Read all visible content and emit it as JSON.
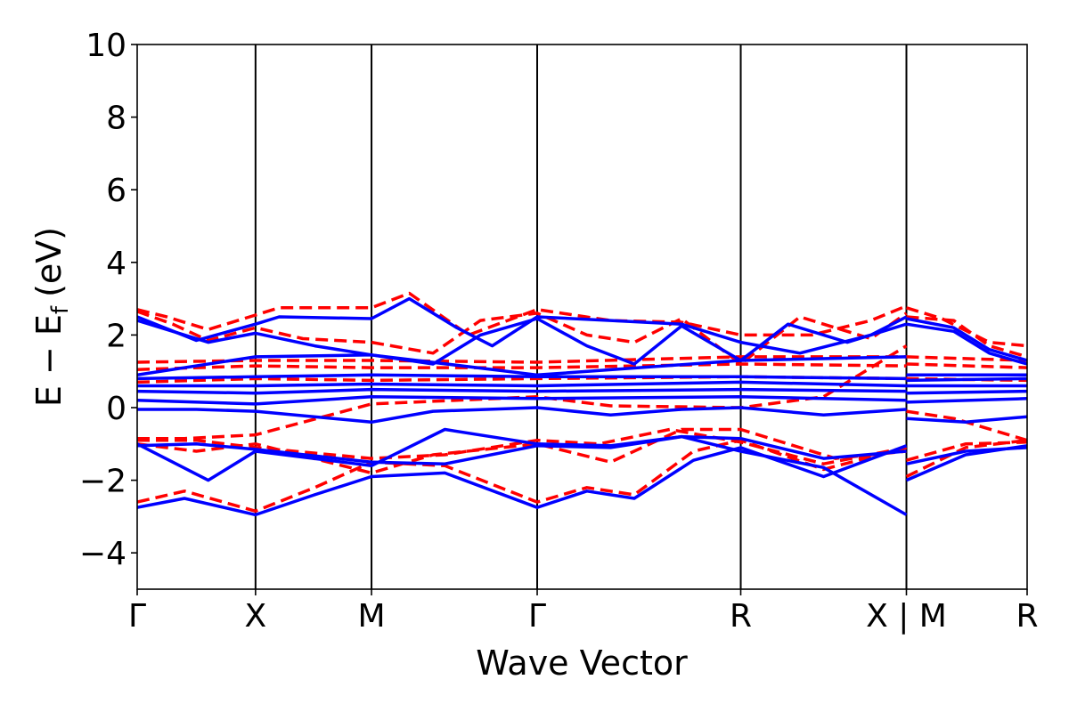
{
  "chart_data": {
    "type": "line",
    "xlabel": "Wave Vector",
    "ylabel_main": "E − E",
    "ylabel_sub": "f",
    "ylabel_unit": "(eV)",
    "ylim": [
      -5,
      10
    ],
    "yticks": [
      {
        "value": -4,
        "label": "−4"
      },
      {
        "value": -2,
        "label": "−2"
      },
      {
        "value": 0,
        "label": "0"
      },
      {
        "value": 2,
        "label": "2"
      },
      {
        "value": 4,
        "label": "4"
      },
      {
        "value": 6,
        "label": "6"
      },
      {
        "value": 8,
        "label": "8"
      },
      {
        "value": 10,
        "label": "10"
      }
    ],
    "xlim": [
      0,
      7.52
    ],
    "kpoints": [
      {
        "x": 0,
        "label": "Γ"
      },
      {
        "x": 1.0,
        "label": "X"
      },
      {
        "x": 1.98,
        "label": "M"
      },
      {
        "x": 3.38,
        "label": "Γ"
      },
      {
        "x": 5.1,
        "label": "R"
      },
      {
        "x": 6.5,
        "label": "X | M"
      },
      {
        "x": 7.52,
        "label": "R"
      }
    ],
    "vlines": [
      1.0,
      1.98,
      3.38,
      5.1,
      6.5
    ],
    "series": [
      {
        "color": "#ff0000",
        "dashed": true,
        "bands": [
          [
            [
              0,
              2.7
            ],
            [
              0.25,
              2.5
            ],
            [
              0.6,
              2.15
            ],
            [
              1.0,
              2.55
            ],
            [
              1.2,
              2.75
            ],
            [
              1.98,
              2.75
            ],
            [
              2.3,
              3.15
            ],
            [
              2.8,
              2.0
            ],
            [
              3.38,
              2.7
            ],
            [
              4.0,
              2.4
            ],
            [
              4.6,
              2.35
            ],
            [
              5.1,
              2.0
            ],
            [
              5.7,
              2.0
            ],
            [
              6.2,
              2.4
            ],
            [
              6.5,
              2.8
            ]
          ],
          [
            [
              6.5,
              2.75
            ],
            [
              6.8,
              2.45
            ],
            [
              7.2,
              1.8
            ],
            [
              7.52,
              1.7
            ]
          ],
          [
            [
              0,
              2.65
            ],
            [
              0.3,
              2.3
            ],
            [
              0.6,
              1.85
            ],
            [
              1.0,
              2.2
            ],
            [
              1.4,
              1.9
            ],
            [
              1.98,
              1.8
            ],
            [
              2.5,
              1.5
            ],
            [
              2.9,
              2.4
            ],
            [
              3.38,
              2.6
            ],
            [
              3.8,
              2.0
            ],
            [
              4.2,
              1.8
            ],
            [
              4.6,
              2.45
            ],
            [
              5.1,
              1.2
            ],
            [
              5.6,
              2.5
            ],
            [
              6.2,
              1.9
            ],
            [
              6.5,
              2.6
            ]
          ],
          [
            [
              6.5,
              2.5
            ],
            [
              6.9,
              2.4
            ],
            [
              7.2,
              1.7
            ],
            [
              7.52,
              1.4
            ]
          ],
          [
            [
              0,
              1.25
            ],
            [
              1.0,
              1.3
            ],
            [
              1.98,
              1.3
            ],
            [
              3.38,
              1.25
            ],
            [
              5.1,
              1.4
            ],
            [
              6.5,
              1.4
            ]
          ],
          [
            [
              6.5,
              1.4
            ],
            [
              7.52,
              1.3
            ]
          ],
          [
            [
              0,
              1.05
            ],
            [
              1.0,
              1.15
            ],
            [
              1.98,
              1.1
            ],
            [
              3.38,
              1.1
            ],
            [
              5.1,
              1.2
            ],
            [
              6.5,
              1.15
            ]
          ],
          [
            [
              6.5,
              1.2
            ],
            [
              7.52,
              1.1
            ]
          ],
          [
            [
              0,
              0.7
            ],
            [
              1.0,
              0.8
            ],
            [
              1.98,
              0.75
            ],
            [
              3.38,
              0.8
            ],
            [
              5.1,
              0.85
            ],
            [
              6.5,
              0.8
            ]
          ],
          [
            [
              6.5,
              0.8
            ],
            [
              7.52,
              0.75
            ]
          ],
          [
            [
              0,
              -0.85
            ],
            [
              0.4,
              -0.85
            ],
            [
              1.0,
              -0.75
            ],
            [
              1.98,
              0.1
            ],
            [
              3.38,
              0.3
            ],
            [
              4.0,
              0.05
            ],
            [
              5.1,
              0.0
            ],
            [
              5.8,
              0.3
            ],
            [
              6.5,
              1.7
            ]
          ],
          [
            [
              6.5,
              -0.1
            ],
            [
              6.9,
              -0.3
            ],
            [
              7.52,
              -0.9
            ]
          ],
          [
            [
              0,
              -0.9
            ],
            [
              0.5,
              -0.9
            ],
            [
              1.0,
              -1.1
            ],
            [
              1.98,
              -1.4
            ],
            [
              2.6,
              -1.3
            ],
            [
              3.38,
              -0.9
            ],
            [
              3.9,
              -1.0
            ],
            [
              4.5,
              -0.6
            ],
            [
              5.1,
              -0.95
            ],
            [
              5.8,
              -1.55
            ],
            [
              6.5,
              -1.1
            ]
          ],
          [
            [
              6.5,
              -1.45
            ],
            [
              7.0,
              -1.0
            ],
            [
              7.52,
              -0.95
            ]
          ],
          [
            [
              0,
              -2.6
            ],
            [
              0.4,
              -2.3
            ],
            [
              1.0,
              -2.85
            ],
            [
              1.5,
              -2.2
            ],
            [
              1.98,
              -1.5
            ],
            [
              2.6,
              -1.6
            ],
            [
              3.38,
              -2.6
            ],
            [
              3.8,
              -2.2
            ],
            [
              4.2,
              -2.4
            ],
            [
              4.7,
              -1.2
            ],
            [
              5.1,
              -0.9
            ],
            [
              5.8,
              -1.7
            ],
            [
              6.5,
              -1.1
            ]
          ],
          [
            [
              6.5,
              -1.9
            ],
            [
              7.0,
              -1.1
            ],
            [
              7.52,
              -0.9
            ]
          ],
          [
            [
              0,
              -1.0
            ],
            [
              0.5,
              -1.2
            ],
            [
              1.0,
              -1.0
            ],
            [
              1.98,
              -1.8
            ],
            [
              2.5,
              -1.3
            ],
            [
              3.38,
              -1.0
            ],
            [
              4.0,
              -1.5
            ],
            [
              4.6,
              -0.6
            ],
            [
              5.1,
              -0.6
            ],
            [
              5.9,
              -1.4
            ],
            [
              6.5,
              -1.2
            ]
          ]
        ]
      },
      {
        "color": "#0000ff",
        "dashed": false,
        "bands": [
          [
            [
              0,
              2.5
            ],
            [
              0.5,
              1.85
            ],
            [
              1.0,
              2.3
            ],
            [
              1.2,
              2.5
            ],
            [
              1.98,
              2.45
            ],
            [
              2.3,
              3.0
            ],
            [
              2.7,
              2.2
            ],
            [
              3.0,
              1.7
            ],
            [
              3.38,
              2.5
            ],
            [
              4.0,
              2.4
            ],
            [
              4.6,
              2.3
            ],
            [
              5.1,
              1.8
            ],
            [
              5.6,
              1.5
            ],
            [
              6.2,
              2.0
            ],
            [
              6.5,
              2.5
            ]
          ],
          [
            [
              6.5,
              2.45
            ],
            [
              6.9,
              2.2
            ],
            [
              7.2,
              1.6
            ],
            [
              7.52,
              1.3
            ]
          ],
          [
            [
              0,
              2.4
            ],
            [
              0.3,
              2.1
            ],
            [
              0.6,
              1.8
            ],
            [
              1.0,
              2.05
            ],
            [
              1.5,
              1.7
            ],
            [
              1.98,
              1.45
            ],
            [
              2.5,
              1.2
            ],
            [
              2.9,
              2.0
            ],
            [
              3.38,
              2.45
            ],
            [
              3.8,
              1.7
            ],
            [
              4.2,
              1.2
            ],
            [
              4.6,
              2.25
            ],
            [
              5.1,
              1.3
            ],
            [
              5.5,
              2.3
            ],
            [
              6.0,
              1.8
            ],
            [
              6.5,
              2.3
            ]
          ],
          [
            [
              6.5,
              2.3
            ],
            [
              6.9,
              2.1
            ],
            [
              7.2,
              1.5
            ],
            [
              7.52,
              1.2
            ]
          ],
          [
            [
              0,
              0.9
            ],
            [
              1.0,
              1.4
            ],
            [
              1.98,
              1.45
            ],
            [
              3.38,
              0.9
            ],
            [
              5.1,
              1.3
            ],
            [
              6.5,
              1.4
            ]
          ],
          [
            [
              6.5,
              0.9
            ],
            [
              7.52,
              0.9
            ]
          ],
          [
            [
              0,
              0.8
            ],
            [
              1.0,
              0.85
            ],
            [
              1.98,
              0.9
            ],
            [
              3.38,
              0.85
            ],
            [
              5.1,
              0.85
            ],
            [
              6.5,
              0.8
            ]
          ],
          [
            [
              6.5,
              0.75
            ],
            [
              7.52,
              0.8
            ]
          ],
          [
            [
              0,
              0.6
            ],
            [
              1.0,
              0.6
            ],
            [
              1.98,
              0.65
            ],
            [
              3.38,
              0.6
            ],
            [
              5.1,
              0.7
            ],
            [
              6.5,
              0.6
            ]
          ],
          [
            [
              6.5,
              0.6
            ],
            [
              7.52,
              0.6
            ]
          ],
          [
            [
              0,
              0.45
            ],
            [
              1.0,
              0.4
            ],
            [
              1.98,
              0.5
            ],
            [
              3.38,
              0.45
            ],
            [
              5.1,
              0.5
            ],
            [
              6.5,
              0.45
            ]
          ],
          [
            [
              6.5,
              0.4
            ],
            [
              7.52,
              0.45
            ]
          ],
          [
            [
              0,
              0.2
            ],
            [
              1.0,
              0.1
            ],
            [
              1.98,
              0.3
            ],
            [
              3.38,
              0.25
            ],
            [
              5.1,
              0.3
            ],
            [
              6.5,
              0.2
            ]
          ],
          [
            [
              6.5,
              0.15
            ],
            [
              7.52,
              0.25
            ]
          ],
          [
            [
              0,
              -0.05
            ],
            [
              0.5,
              -0.05
            ],
            [
              1.0,
              -0.1
            ],
            [
              1.98,
              -0.4
            ],
            [
              2.5,
              -0.1
            ],
            [
              3.38,
              0.0
            ],
            [
              4.0,
              -0.2
            ],
            [
              4.6,
              -0.05
            ],
            [
              5.1,
              0.0
            ],
            [
              5.8,
              -0.2
            ],
            [
              6.5,
              -0.05
            ]
          ],
          [
            [
              6.5,
              -0.3
            ],
            [
              7.0,
              -0.4
            ],
            [
              7.52,
              -0.25
            ]
          ],
          [
            [
              0,
              -1.05
            ],
            [
              0.5,
              -1.0
            ],
            [
              1.0,
              -1.15
            ],
            [
              1.98,
              -1.5
            ],
            [
              2.6,
              -1.55
            ],
            [
              3.38,
              -1.05
            ],
            [
              4.0,
              -1.1
            ],
            [
              4.6,
              -0.8
            ],
            [
              5.1,
              -0.85
            ],
            [
              5.8,
              -1.4
            ],
            [
              6.5,
              -1.2
            ]
          ],
          [
            [
              6.5,
              -1.55
            ],
            [
              7.0,
              -1.2
            ],
            [
              7.52,
              -1.1
            ]
          ],
          [
            [
              0,
              -2.75
            ],
            [
              0.4,
              -2.5
            ],
            [
              1.0,
              -2.95
            ],
            [
              1.5,
              -2.4
            ],
            [
              1.98,
              -1.9
            ],
            [
              2.6,
              -1.8
            ],
            [
              3.38,
              -2.75
            ],
            [
              3.8,
              -2.3
            ],
            [
              4.2,
              -2.5
            ],
            [
              4.7,
              -1.45
            ],
            [
              5.1,
              -1.1
            ],
            [
              5.8,
              -1.9
            ],
            [
              6.5,
              -1.05
            ]
          ],
          [
            [
              6.5,
              -2.0
            ],
            [
              7.0,
              -1.3
            ],
            [
              7.52,
              -1.05
            ]
          ],
          [
            [
              0,
              -1.0
            ],
            [
              0.6,
              -2.0
            ],
            [
              1.0,
              -1.2
            ],
            [
              1.98,
              -1.6
            ],
            [
              2.6,
              -0.6
            ],
            [
              3.38,
              -1.0
            ],
            [
              4.0,
              -1.05
            ],
            [
              4.6,
              -0.8
            ],
            [
              5.1,
              -1.2
            ],
            [
              5.8,
              -1.65
            ],
            [
              6.5,
              -2.95
            ]
          ]
        ]
      }
    ]
  }
}
